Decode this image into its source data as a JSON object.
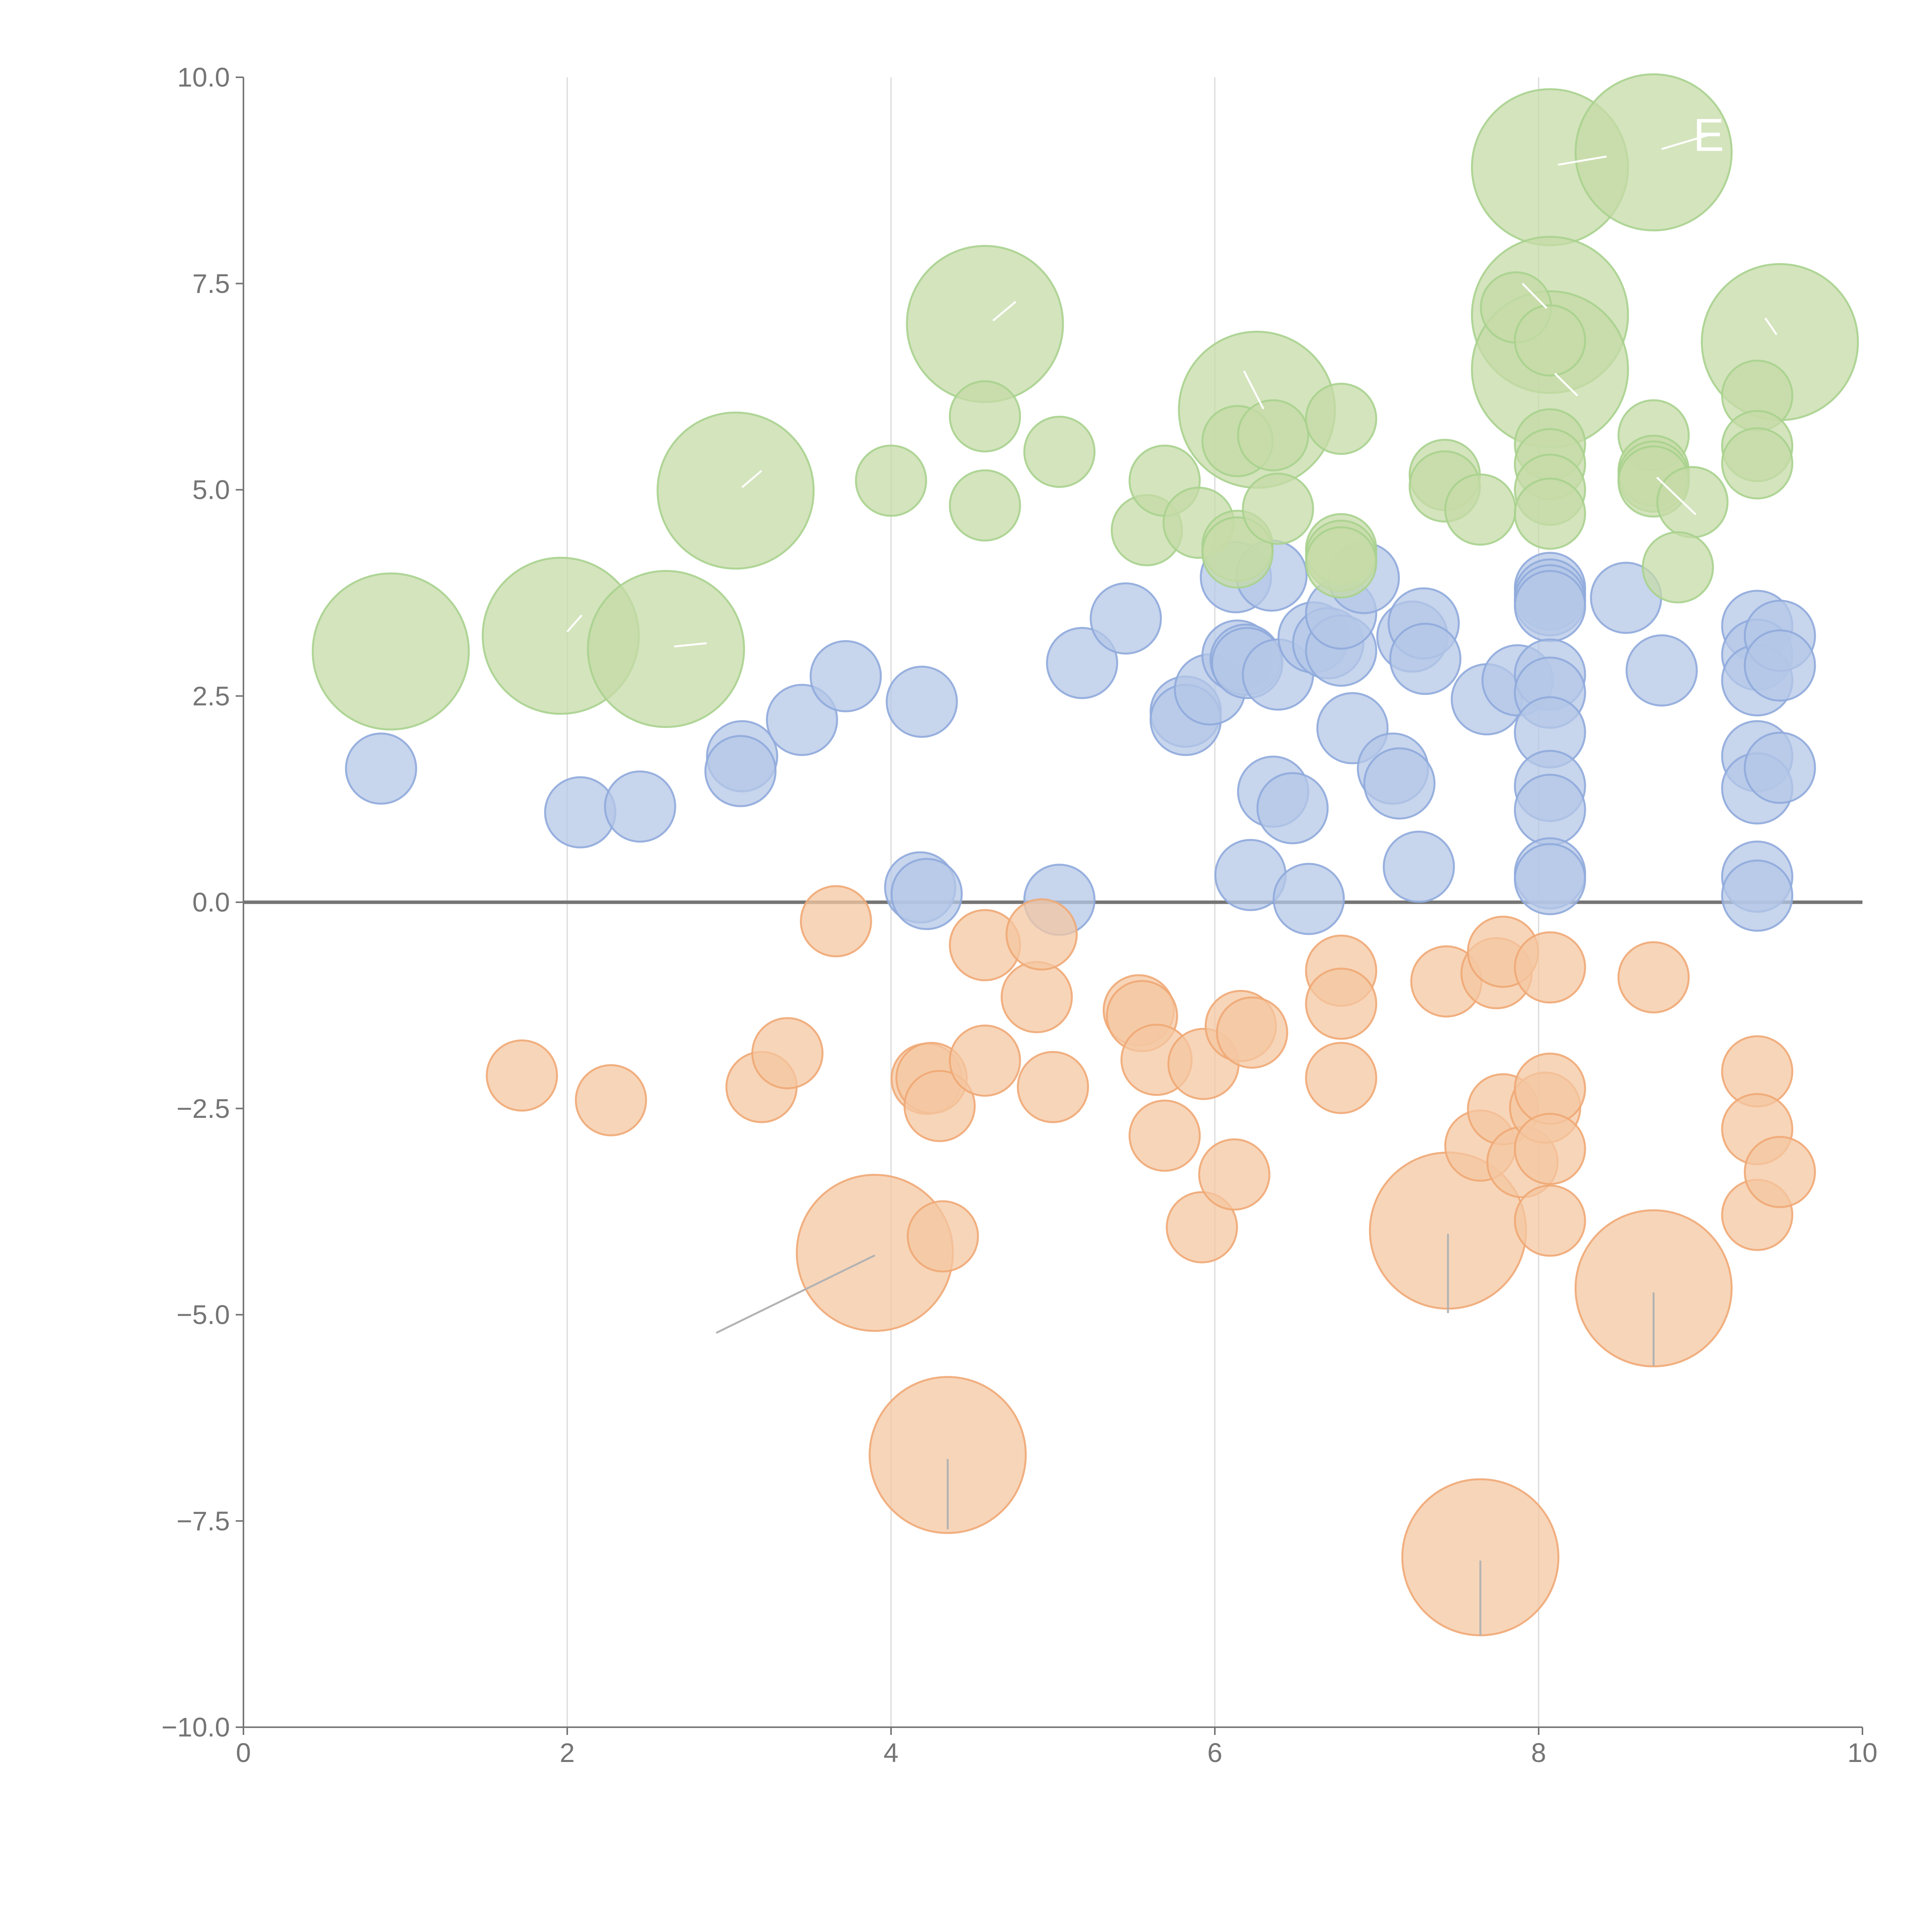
{
  "chart_data": {
    "type": "scatter",
    "title": "",
    "xlabel": "",
    "ylabel": "",
    "xlim": [
      0,
      10
    ],
    "ylim": [
      -10,
      10
    ],
    "x_ticks": [
      0,
      2,
      4,
      6,
      8,
      10
    ],
    "y_ticks": [
      -10.0,
      -7.5,
      -5.0,
      -2.5,
      0.0,
      2.5,
      5.0,
      7.5,
      10.0
    ],
    "x_tick_labels": [
      "0",
      "2",
      "4",
      "6",
      "8",
      "10"
    ],
    "y_tick_labels": [
      "−10.0",
      "−7.5",
      "−5.0",
      "−2.5",
      "0.0",
      "2.5",
      "5.0",
      "7.5",
      "10.0"
    ],
    "grid": {
      "x": true,
      "y": false
    },
    "zero_line": true,
    "bubble_label_color": "#ffffff",
    "series": [
      {
        "name": "blue",
        "fill": "#b4c7e7",
        "stroke": "#8faadc",
        "points": [
          {
            "x": 0.85,
            "y": 1.62,
            "r": 0.9
          },
          {
            "x": 2.08,
            "y": 1.09,
            "r": 0.9
          },
          {
            "x": 2.45,
            "y": 1.16,
            "r": 0.9
          },
          {
            "x": 3.08,
            "y": 1.77,
            "r": 0.9
          },
          {
            "x": 3.07,
            "y": 1.59,
            "r": 0.9
          },
          {
            "x": 3.45,
            "y": 2.21,
            "r": 0.9
          },
          {
            "x": 3.72,
            "y": 2.74,
            "r": 0.9
          },
          {
            "x": 4.19,
            "y": 2.43,
            "r": 0.9
          },
          {
            "x": 4.18,
            "y": 0.18,
            "r": 0.9
          },
          {
            "x": 4.22,
            "y": 0.1,
            "r": 0.9
          },
          {
            "x": 5.04,
            "y": 0.03,
            "r": 0.9
          },
          {
            "x": 5.18,
            "y": 2.9,
            "r": 0.9
          },
          {
            "x": 5.45,
            "y": 3.44,
            "r": 0.9
          },
          {
            "x": 5.82,
            "y": 2.31,
            "r": 0.9
          },
          {
            "x": 5.82,
            "y": 2.21,
            "r": 0.9
          },
          {
            "x": 5.97,
            "y": 2.58,
            "r": 0.9
          },
          {
            "x": 6.13,
            "y": 3.94,
            "r": 0.9
          },
          {
            "x": 6.35,
            "y": 3.96,
            "r": 0.9
          },
          {
            "x": 6.14,
            "y": 2.99,
            "r": 0.9
          },
          {
            "x": 6.19,
            "y": 2.94,
            "r": 0.9
          },
          {
            "x": 6.2,
            "y": 2.9,
            "r": 0.9
          },
          {
            "x": 6.39,
            "y": 2.76,
            "r": 0.9
          },
          {
            "x": 6.22,
            "y": 0.33,
            "r": 0.9
          },
          {
            "x": 6.36,
            "y": 1.34,
            "r": 0.9
          },
          {
            "x": 6.48,
            "y": 1.14,
            "r": 0.9
          },
          {
            "x": 6.58,
            "y": 0.04,
            "r": 0.9
          },
          {
            "x": 6.61,
            "y": 3.21,
            "r": 0.9
          },
          {
            "x": 6.7,
            "y": 3.14,
            "r": 0.9
          },
          {
            "x": 6.78,
            "y": 3.05,
            "r": 0.9
          },
          {
            "x": 6.78,
            "y": 3.5,
            "r": 0.9
          },
          {
            "x": 6.92,
            "y": 3.93,
            "r": 0.9
          },
          {
            "x": 6.85,
            "y": 2.11,
            "r": 0.9
          },
          {
            "x": 7.1,
            "y": 1.62,
            "r": 0.9
          },
          {
            "x": 7.14,
            "y": 1.44,
            "r": 0.9
          },
          {
            "x": 7.26,
            "y": 0.43,
            "r": 0.9
          },
          {
            "x": 7.22,
            "y": 3.22,
            "r": 0.9
          },
          {
            "x": 7.29,
            "y": 3.38,
            "r": 0.9
          },
          {
            "x": 7.3,
            "y": 2.95,
            "r": 0.9
          },
          {
            "x": 7.68,
            "y": 2.46,
            "r": 0.9
          },
          {
            "x": 7.87,
            "y": 2.69,
            "r": 0.9
          },
          {
            "x": 8.07,
            "y": 3.81,
            "r": 0.9
          },
          {
            "x": 8.07,
            "y": 3.73,
            "r": 0.9
          },
          {
            "x": 8.07,
            "y": 3.66,
            "r": 0.9
          },
          {
            "x": 8.07,
            "y": 3.59,
            "r": 0.9
          },
          {
            "x": 8.07,
            "y": 2.76,
            "r": 0.9
          },
          {
            "x": 8.07,
            "y": 2.54,
            "r": 0.9
          },
          {
            "x": 8.07,
            "y": 2.06,
            "r": 0.9
          },
          {
            "x": 8.07,
            "y": 1.41,
            "r": 0.9
          },
          {
            "x": 8.07,
            "y": 1.12,
            "r": 0.9
          },
          {
            "x": 8.07,
            "y": 0.35,
            "r": 0.9
          },
          {
            "x": 8.07,
            "y": 0.28,
            "r": 0.9
          },
          {
            "x": 8.54,
            "y": 3.69,
            "r": 0.9
          },
          {
            "x": 8.76,
            "y": 2.81,
            "r": 0.9
          },
          {
            "x": 9.35,
            "y": 3.35,
            "r": 0.9
          },
          {
            "x": 9.35,
            "y": 3.0,
            "r": 0.9
          },
          {
            "x": 9.35,
            "y": 2.69,
            "r": 0.9
          },
          {
            "x": 9.35,
            "y": 1.77,
            "r": 0.9
          },
          {
            "x": 9.35,
            "y": 1.38,
            "r": 0.9
          },
          {
            "x": 9.35,
            "y": 0.31,
            "r": 0.9
          },
          {
            "x": 9.35,
            "y": 0.08,
            "r": 0.9
          },
          {
            "x": 9.49,
            "y": 3.23,
            "r": 0.9
          },
          {
            "x": 9.49,
            "y": 2.87,
            "r": 0.9
          },
          {
            "x": 9.49,
            "y": 1.63,
            "r": 0.9
          }
        ]
      },
      {
        "name": "green",
        "fill": "#c5dba7",
        "stroke": "#a9d18e",
        "points": [
          {
            "x": 0.91,
            "y": 3.04,
            "r": 2.0
          },
          {
            "x": 1.96,
            "y": 3.23,
            "r": 2.0
          },
          {
            "x": 2.61,
            "y": 3.07,
            "r": 2.0
          },
          {
            "x": 3.04,
            "y": 4.99,
            "r": 2.0
          },
          {
            "x": 4.58,
            "y": 7.01,
            "r": 2.0
          },
          {
            "x": 6.26,
            "y": 5.97,
            "r": 2.0
          },
          {
            "x": 8.07,
            "y": 8.91,
            "r": 2.0
          },
          {
            "x": 8.71,
            "y": 9.09,
            "r": 2.0
          },
          {
            "x": 8.07,
            "y": 7.12,
            "r": 2.0
          },
          {
            "x": 8.07,
            "y": 6.46,
            "r": 2.0
          },
          {
            "x": 9.49,
            "y": 6.79,
            "r": 2.0
          },
          {
            "x": 4.58,
            "y": 5.89,
            "r": 0.9
          },
          {
            "x": 4.58,
            "y": 4.81,
            "r": 0.9
          },
          {
            "x": 4.0,
            "y": 5.11,
            "r": 0.9
          },
          {
            "x": 5.04,
            "y": 5.46,
            "r": 0.9
          },
          {
            "x": 5.58,
            "y": 4.51,
            "r": 0.9
          },
          {
            "x": 5.69,
            "y": 5.11,
            "r": 0.9
          },
          {
            "x": 5.9,
            "y": 4.6,
            "r": 0.9
          },
          {
            "x": 6.14,
            "y": 5.59,
            "r": 0.9
          },
          {
            "x": 6.14,
            "y": 4.32,
            "r": 0.9
          },
          {
            "x": 6.14,
            "y": 4.24,
            "r": 0.9
          },
          {
            "x": 6.36,
            "y": 5.66,
            "r": 0.9
          },
          {
            "x": 6.39,
            "y": 4.77,
            "r": 0.9
          },
          {
            "x": 6.78,
            "y": 5.86,
            "r": 0.9
          },
          {
            "x": 6.78,
            "y": 4.28,
            "r": 0.9
          },
          {
            "x": 6.78,
            "y": 4.2,
            "r": 0.9
          },
          {
            "x": 6.78,
            "y": 4.12,
            "r": 0.9
          },
          {
            "x": 7.42,
            "y": 5.18,
            "r": 0.9
          },
          {
            "x": 7.42,
            "y": 5.04,
            "r": 0.9
          },
          {
            "x": 7.64,
            "y": 4.76,
            "r": 0.9
          },
          {
            "x": 7.86,
            "y": 7.21,
            "r": 0.9
          },
          {
            "x": 8.07,
            "y": 6.81,
            "r": 0.9
          },
          {
            "x": 8.07,
            "y": 5.55,
            "r": 0.9
          },
          {
            "x": 8.07,
            "y": 5.31,
            "r": 0.9
          },
          {
            "x": 8.07,
            "y": 5.0,
            "r": 0.9
          },
          {
            "x": 8.07,
            "y": 4.71,
            "r": 0.9
          },
          {
            "x": 8.71,
            "y": 5.66,
            "r": 0.9
          },
          {
            "x": 8.71,
            "y": 5.23,
            "r": 0.9
          },
          {
            "x": 8.71,
            "y": 5.16,
            "r": 0.9
          },
          {
            "x": 8.71,
            "y": 5.1,
            "r": 0.9
          },
          {
            "x": 8.95,
            "y": 4.85,
            "r": 0.9
          },
          {
            "x": 8.86,
            "y": 4.06,
            "r": 0.9
          },
          {
            "x": 9.35,
            "y": 6.14,
            "r": 0.9
          },
          {
            "x": 9.35,
            "y": 5.53,
            "r": 0.9
          },
          {
            "x": 9.35,
            "y": 5.32,
            "r": 0.9
          }
        ]
      },
      {
        "name": "orange",
        "fill": "#f4c7a2",
        "stroke": "#f0a875",
        "points": [
          {
            "x": 3.9,
            "y": -4.25,
            "r": 2.0
          },
          {
            "x": 4.35,
            "y": -6.7,
            "r": 2.0
          },
          {
            "x": 7.44,
            "y": -3.98,
            "r": 2.0
          },
          {
            "x": 8.71,
            "y": -4.68,
            "r": 2.0
          },
          {
            "x": 7.64,
            "y": -7.94,
            "r": 2.0
          },
          {
            "x": 1.72,
            "y": -2.1,
            "r": 0.9
          },
          {
            "x": 2.27,
            "y": -2.4,
            "r": 0.9
          },
          {
            "x": 3.2,
            "y": -2.24,
            "r": 0.9
          },
          {
            "x": 3.36,
            "y": -1.83,
            "r": 0.9
          },
          {
            "x": 3.66,
            "y": -0.23,
            "r": 0.9
          },
          {
            "x": 4.22,
            "y": -2.14,
            "r": 0.9
          },
          {
            "x": 4.25,
            "y": -2.13,
            "r": 0.9
          },
          {
            "x": 4.3,
            "y": -2.47,
            "r": 0.9
          },
          {
            "x": 4.32,
            "y": -4.05,
            "r": 0.9
          },
          {
            "x": 4.58,
            "y": -0.52,
            "r": 0.9
          },
          {
            "x": 4.58,
            "y": -1.92,
            "r": 0.9
          },
          {
            "x": 4.9,
            "y": -1.15,
            "r": 0.9
          },
          {
            "x": 4.93,
            "y": -0.39,
            "r": 0.9
          },
          {
            "x": 5.0,
            "y": -2.24,
            "r": 0.9
          },
          {
            "x": 5.53,
            "y": -1.31,
            "r": 0.9
          },
          {
            "x": 5.55,
            "y": -1.38,
            "r": 0.9
          },
          {
            "x": 5.64,
            "y": -1.91,
            "r": 0.9
          },
          {
            "x": 5.69,
            "y": -2.83,
            "r": 0.9
          },
          {
            "x": 5.93,
            "y": -1.96,
            "r": 0.9
          },
          {
            "x": 5.92,
            "y": -3.94,
            "r": 0.9
          },
          {
            "x": 6.12,
            "y": -3.3,
            "r": 0.9
          },
          {
            "x": 6.16,
            "y": -1.5,
            "r": 0.9
          },
          {
            "x": 6.23,
            "y": -1.58,
            "r": 0.9
          },
          {
            "x": 6.78,
            "y": -0.83,
            "r": 0.9
          },
          {
            "x": 6.78,
            "y": -1.23,
            "r": 0.9
          },
          {
            "x": 6.78,
            "y": -2.13,
            "r": 0.9
          },
          {
            "x": 7.43,
            "y": -0.96,
            "r": 0.9
          },
          {
            "x": 7.64,
            "y": -2.95,
            "r": 0.9
          },
          {
            "x": 7.74,
            "y": -0.86,
            "r": 0.9
          },
          {
            "x": 7.78,
            "y": -0.6,
            "r": 0.9
          },
          {
            "x": 7.78,
            "y": -2.51,
            "r": 0.9
          },
          {
            "x": 7.9,
            "y": -3.15,
            "r": 0.9
          },
          {
            "x": 8.04,
            "y": -2.49,
            "r": 0.9
          },
          {
            "x": 8.07,
            "y": -0.79,
            "r": 0.9
          },
          {
            "x": 8.07,
            "y": -2.26,
            "r": 0.9
          },
          {
            "x": 8.07,
            "y": -2.99,
            "r": 0.9
          },
          {
            "x": 8.07,
            "y": -3.86,
            "r": 0.9
          },
          {
            "x": 8.71,
            "y": -0.91,
            "r": 0.9
          },
          {
            "x": 9.35,
            "y": -2.05,
            "r": 0.9
          },
          {
            "x": 9.35,
            "y": -2.75,
            "r": 0.9
          },
          {
            "x": 9.35,
            "y": -3.79,
            "r": 0.9
          },
          {
            "x": 9.49,
            "y": -3.27,
            "r": 0.9
          }
        ]
      }
    ],
    "annotations": [
      {
        "text": "",
        "x1": 3.9,
        "y1": -4.28,
        "x2": 2.92,
        "y2": -5.22,
        "color": "#b3b3b3"
      },
      {
        "text": "",
        "x1": 4.35,
        "y1": -6.75,
        "x2": 4.35,
        "y2": -7.6,
        "color": "#b3b3b3"
      },
      {
        "text": "",
        "x1": 7.44,
        "y1": -4.02,
        "x2": 7.44,
        "y2": -4.98,
        "color": "#b3b3b3"
      },
      {
        "text": "",
        "x1": 8.71,
        "y1": -4.73,
        "x2": 8.71,
        "y2": -5.62,
        "color": "#b3b3b3"
      },
      {
        "text": "",
        "x1": 7.64,
        "y1": -7.98,
        "x2": 7.64,
        "y2": -8.89,
        "color": "#b3b3b3"
      },
      {
        "text": "",
        "x1": 3.08,
        "y1": 5.03,
        "x2": 3.2,
        "y2": 5.23,
        "color": "#ffffff"
      },
      {
        "text": "",
        "x1": 2.0,
        "y1": 3.28,
        "x2": 2.09,
        "y2": 3.48,
        "color": "#ffffff"
      },
      {
        "text": "",
        "x1": 2.66,
        "y1": 3.1,
        "x2": 2.86,
        "y2": 3.14,
        "color": "#ffffff"
      },
      {
        "text": "",
        "x1": 4.63,
        "y1": 7.05,
        "x2": 4.77,
        "y2": 7.28,
        "color": "#ffffff"
      },
      {
        "text": "",
        "x1": 8.12,
        "y1": 8.94,
        "x2": 8.42,
        "y2": 9.04,
        "color": "#ffffff"
      },
      {
        "text": "E",
        "x1": 8.76,
        "y1": 9.13,
        "x2": 9.05,
        "y2": 9.3,
        "color": "#ffffff"
      },
      {
        "text": "",
        "x1": 8.05,
        "y1": 7.2,
        "x2": 7.9,
        "y2": 7.5,
        "color": "#ffffff"
      },
      {
        "text": "",
        "x1": 8.1,
        "y1": 6.41,
        "x2": 8.24,
        "y2": 6.14,
        "color": "#ffffff"
      },
      {
        "text": "",
        "x1": 9.47,
        "y1": 6.88,
        "x2": 9.4,
        "y2": 7.08,
        "color": "#ffffff"
      },
      {
        "text": "",
        "x1": 6.3,
        "y1": 5.98,
        "x2": 6.18,
        "y2": 6.44,
        "color": "#ffffff"
      },
      {
        "text": "",
        "x1": 8.73,
        "y1": 5.15,
        "x2": 8.97,
        "y2": 4.7,
        "color": "#ffffff"
      }
    ]
  }
}
